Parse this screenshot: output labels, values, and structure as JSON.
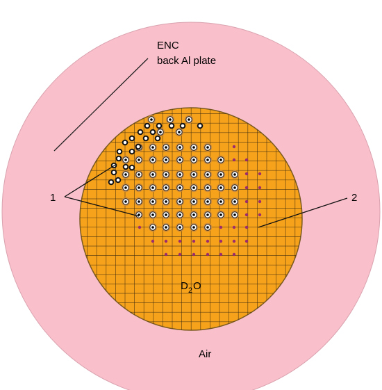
{
  "labels": {
    "enc_line1": "ENC",
    "enc_line2": "back Al plate",
    "callout_1": "1",
    "callout_2": "2",
    "d2o_main": "D",
    "d2o_sub": "2",
    "d2o_tail": "O",
    "air": "Air"
  },
  "colors": {
    "outer_ring": "#F9BFCB",
    "outer_ring_stroke": "#D9A2AE",
    "inner_core": "#F7A21B",
    "grid_line": "#3A2A10",
    "fuel_outer": "#C98A3E",
    "fuel_inner": "#FFFFFF",
    "fuel_center": "#000000",
    "small_channel": "#9B2C6E"
  }
}
